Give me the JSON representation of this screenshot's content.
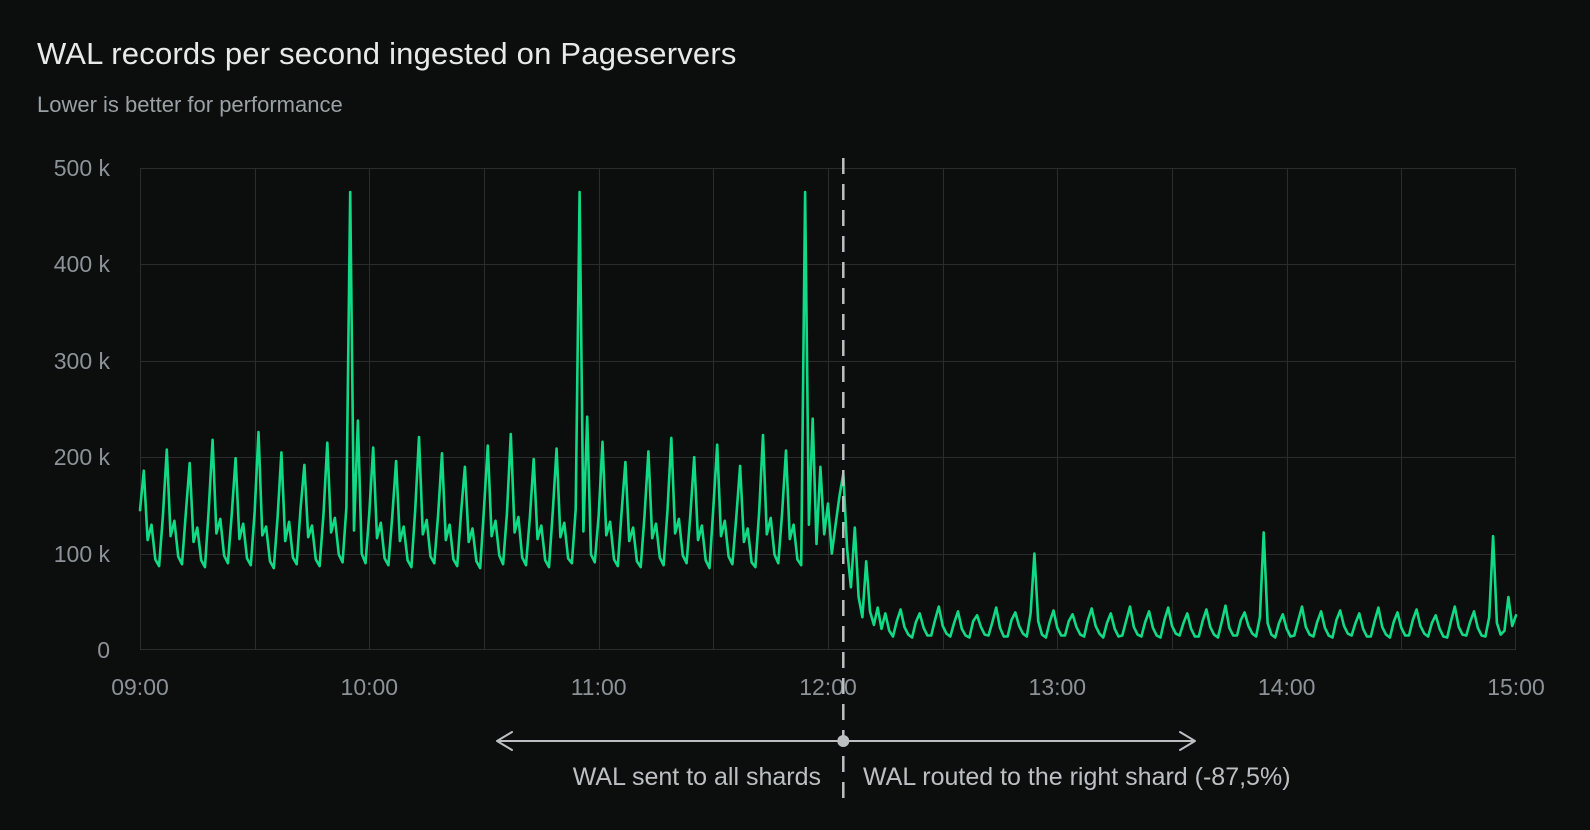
{
  "header": {
    "title": "WAL records per second ingested on Pageservers",
    "subtitle": "Lower is better for performance"
  },
  "colors": {
    "background": "#0c0e0d",
    "grid": "#2a2d2c",
    "accent_green": "#10da84",
    "title_text": "#e8eae9",
    "subtitle_text": "#9aa0a4",
    "tick_text": "#8c9298",
    "annotation": "#bcc0c3"
  },
  "chart_data": {
    "type": "line",
    "title": "WAL records per second ingested on Pageservers",
    "subtitle": "Lower is better for performance",
    "xlabel": "",
    "ylabel": "",
    "grid": "on",
    "legend": "none",
    "ylim_k": [
      0,
      500
    ],
    "y_ticks": {
      "labels": [
        "500 k",
        "400 k",
        "300 k",
        "200 k",
        "100 k",
        "0"
      ],
      "values_k": [
        500,
        400,
        300,
        200,
        100,
        0
      ]
    },
    "x_ticks": {
      "labels": [
        "09:00",
        "10:00",
        "11:00",
        "12:00",
        "13:00",
        "14:00",
        "15:00"
      ],
      "minutes": [
        0,
        60,
        120,
        180,
        240,
        300,
        360
      ]
    },
    "x_gridline_interval_minutes": 30,
    "y_gridline_interval_k": 100,
    "series": [
      {
        "name": "WAL records per second",
        "color": "#10da84",
        "start_time": "09:00",
        "sample_interval_minutes": 1,
        "unit": "thousands of records/s",
        "values_k": [
          145,
          186,
          114,
          130,
          94,
          87,
          139,
          208,
          118,
          134,
          97,
          89,
          143,
          194,
          112,
          127,
          93,
          86,
          147,
          218,
          121,
          136,
          98,
          90,
          140,
          199,
          115,
          131,
          95,
          88,
          144,
          226,
          119,
          128,
          92,
          85,
          138,
          205,
          113,
          133,
          96,
          89,
          146,
          192,
          117,
          129,
          94,
          87,
          141,
          215,
          122,
          137,
          99,
          91,
          148,
          475,
          124,
          238,
          100,
          90,
          142,
          210,
          116,
          132,
          95,
          88,
          139,
          196,
          113,
          128,
          93,
          86,
          145,
          221,
          120,
          135,
          97,
          90,
          140,
          204,
          114,
          130,
          94,
          87,
          143,
          190,
          112,
          126,
          92,
          85,
          147,
          212,
          118,
          134,
          98,
          89,
          141,
          224,
          122,
          138,
          96,
          88,
          138,
          198,
          115,
          129,
          93,
          86,
          144,
          209,
          117,
          132,
          95,
          90,
          146,
          475,
          123,
          242,
          99,
          91,
          140,
          216,
          119,
          133,
          94,
          87,
          143,
          195,
          113,
          127,
          92,
          86,
          139,
          206,
          116,
          131,
          96,
          88,
          145,
          220,
          121,
          136,
          98,
          90,
          141,
          200,
          114,
          129,
          93,
          85,
          147,
          213,
          118,
          134,
          97,
          89,
          138,
          191,
          112,
          126,
          91,
          86,
          144,
          223,
          120,
          137,
          99,
          90,
          142,
          207,
          115,
          130,
          94,
          88,
          475,
          130,
          240,
          110,
          190,
          120,
          152,
          100,
          130,
          160,
          183,
          105,
          65,
          127,
          55,
          34,
          92,
          40,
          26,
          44,
          22,
          38,
          20,
          14,
          30,
          42,
          24,
          16,
          13,
          29,
          38,
          23,
          15,
          15,
          31,
          45,
          25,
          17,
          14,
          28,
          40,
          22,
          15,
          13,
          30,
          36,
          24,
          16,
          15,
          29,
          44,
          23,
          14,
          14,
          31,
          39,
          25,
          17,
          14,
          38,
          100,
          30,
          16,
          13,
          29,
          41,
          23,
          15,
          15,
          30,
          37,
          24,
          16,
          14,
          31,
          43,
          25,
          17,
          13,
          28,
          38,
          22,
          14,
          15,
          30,
          45,
          24,
          16,
          14,
          29,
          40,
          23,
          15,
          13,
          31,
          44,
          25,
          17,
          15,
          28,
          38,
          22,
          14,
          14,
          30,
          42,
          24,
          16,
          13,
          29,
          46,
          23,
          15,
          15,
          31,
          39,
          25,
          17,
          14,
          34,
          122,
          28,
          16,
          13,
          28,
          37,
          22,
          14,
          15,
          30,
          45,
          24,
          16,
          14,
          29,
          40,
          23,
          15,
          13,
          31,
          41,
          25,
          17,
          15,
          28,
          38,
          22,
          14,
          14,
          30,
          44,
          24,
          16,
          13,
          29,
          39,
          23,
          15,
          15,
          31,
          42,
          25,
          17,
          14,
          28,
          36,
          22,
          14,
          13,
          30,
          45,
          24,
          16,
          15,
          29,
          40,
          23,
          15,
          14,
          34,
          118,
          28,
          16,
          20,
          55,
          25,
          36
        ]
      }
    ],
    "annotations": {
      "divider": {
        "style": "dashed-vertical",
        "minute": 184,
        "approx_time": "12:04"
      },
      "left_label": "WAL sent to all shards",
      "right_label": "WAL routed to the right shard (-87,5%)",
      "big_spike_value_k": 475
    }
  }
}
